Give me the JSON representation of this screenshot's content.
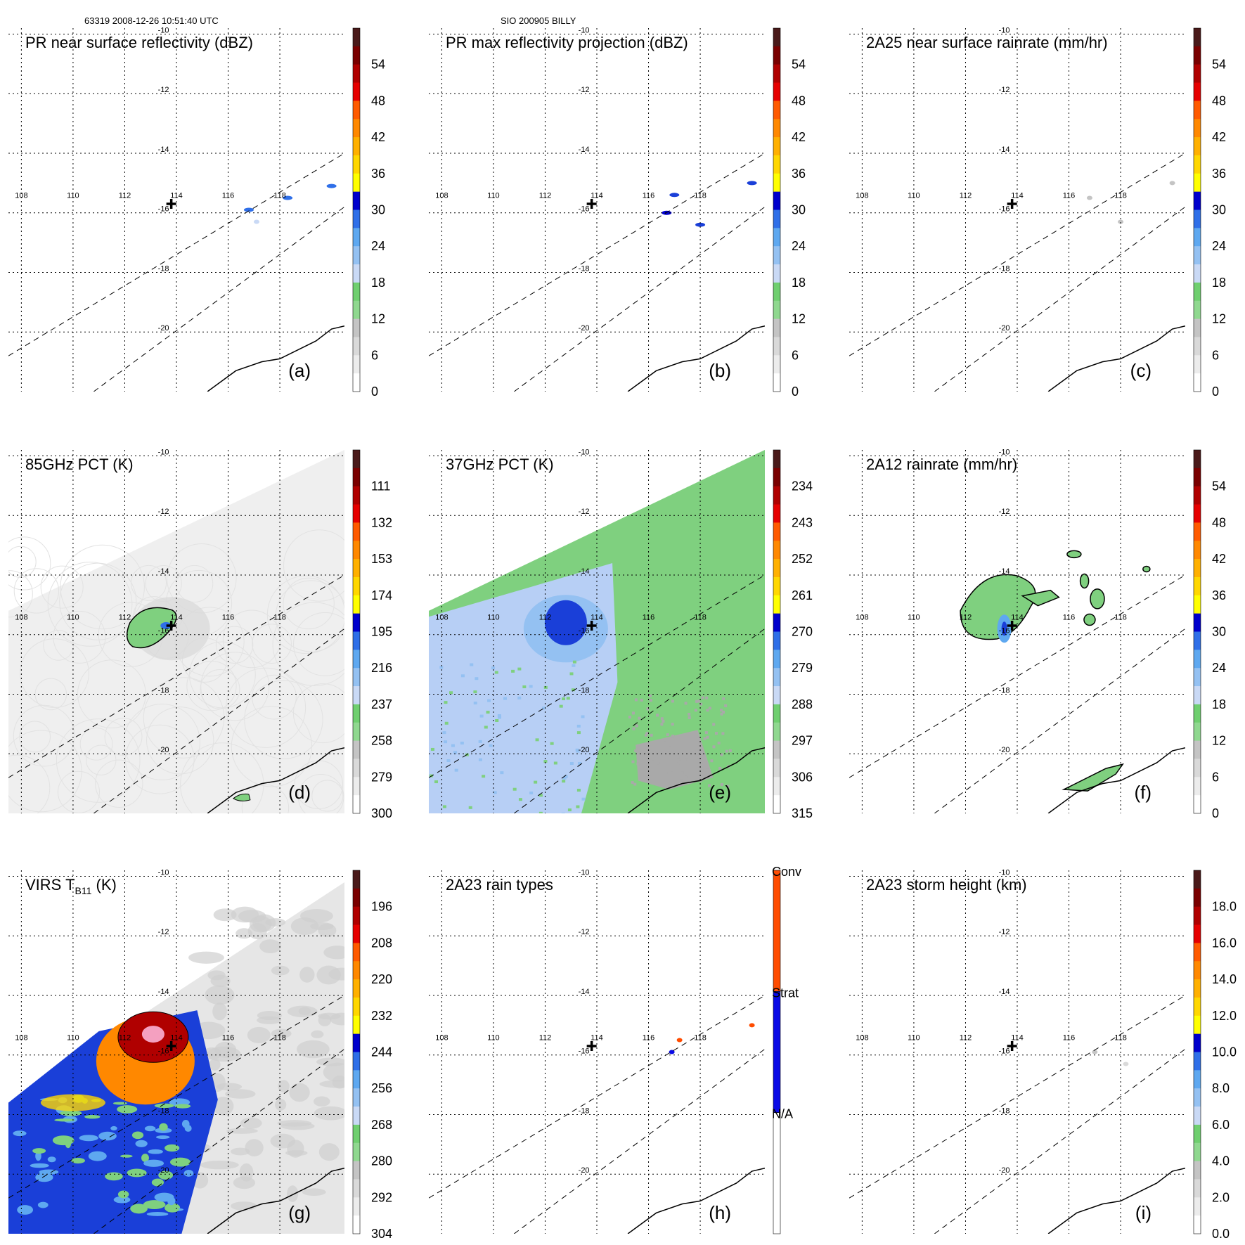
{
  "header": {
    "orbit_time": "63319 2008-12-26 10:51:40 UTC",
    "storm": "SIO 200905 BILLY"
  },
  "colors": {
    "scale": [
      "#ffffff",
      "#ececec",
      "#d9d9d9",
      "#c4c4c4",
      "#a9a9a9",
      "#8fd88f",
      "#6fcf6f",
      "#c9d9f5",
      "#94c1f2",
      "#5ea8f0",
      "#2f6fe8",
      "#1a3fd8",
      "#0000cc",
      "#ffff00",
      "#ffd700",
      "#ffb000",
      "#ff8800",
      "#ff5a00",
      "#ff2a00",
      "#e60000",
      "#b00000",
      "#7a0000",
      "#4a1a1a"
    ],
    "rain_types": {
      "Conv": "#ff4c00",
      "Strat": "#0a0ae6",
      "N/A": "#ffffff"
    },
    "coast": "#000000",
    "track": "#000000"
  },
  "chart_data": [
    {
      "id": "a",
      "type": "heatmap",
      "title": "PR near surface reflectivity (dBZ)",
      "label": "(a)",
      "xlim": [
        107.5,
        120.5
      ],
      "ylim": [
        -22,
        -9.8
      ],
      "xticks": [
        108,
        110,
        112,
        114,
        116,
        118
      ],
      "yticks": [
        -10,
        -12,
        -14,
        -16,
        -18,
        -20
      ],
      "colorbar": {
        "ticks": [
          "54",
          "48",
          "42",
          "36",
          "30",
          "24",
          "18",
          "12",
          "6",
          "0"
        ],
        "range": [
          0,
          60
        ]
      },
      "storm_center": [
        113.8,
        -15.7
      ],
      "field": "sparse",
      "features": [
        {
          "lon": 116.8,
          "lat": -15.9,
          "value": 28
        },
        {
          "lon": 118.3,
          "lat": -15.5,
          "value": 26
        },
        {
          "lon": 120.0,
          "lat": -15.1,
          "value": 27
        },
        {
          "lon": 117.1,
          "lat": -16.3,
          "value": 20
        }
      ]
    },
    {
      "id": "b",
      "type": "heatmap",
      "title": "PR max reflectivity projection (dBZ)",
      "label": "(b)",
      "xlim": [
        107.5,
        120.5
      ],
      "ylim": [
        -22,
        -9.8
      ],
      "xticks": [
        108,
        110,
        112,
        114,
        116,
        118
      ],
      "yticks": [
        -10,
        -12,
        -14,
        -16,
        -18,
        -20
      ],
      "colorbar": {
        "ticks": [
          "54",
          "48",
          "42",
          "36",
          "30",
          "24",
          "18",
          "12",
          "6",
          "0"
        ],
        "range": [
          0,
          60
        ]
      },
      "storm_center": [
        113.8,
        -15.7
      ],
      "field": "sparse",
      "features": [
        {
          "lon": 116.7,
          "lat": -16.0,
          "value": 32
        },
        {
          "lon": 117.0,
          "lat": -15.4,
          "value": 31
        },
        {
          "lon": 118.0,
          "lat": -16.4,
          "value": 30
        },
        {
          "lon": 120.0,
          "lat": -15.0,
          "value": 31
        }
      ]
    },
    {
      "id": "c",
      "type": "heatmap",
      "title": "2A25 near surface rainrate (mm/hr)",
      "label": "(c)",
      "xlim": [
        107.5,
        120.5
      ],
      "ylim": [
        -22,
        -9.8
      ],
      "xticks": [
        108,
        110,
        112,
        114,
        116,
        118
      ],
      "yticks": [
        -10,
        -12,
        -14,
        -16,
        -18,
        -20
      ],
      "colorbar": {
        "ticks": [
          "54",
          "48",
          "42",
          "36",
          "30",
          "24",
          "18",
          "12",
          "6",
          "0"
        ],
        "range": [
          0,
          60
        ]
      },
      "storm_center": [
        113.8,
        -15.7
      ],
      "field": "sparse",
      "features": [
        {
          "lon": 116.8,
          "lat": -15.5,
          "value": 8
        },
        {
          "lon": 118.0,
          "lat": -16.3,
          "value": 7
        },
        {
          "lon": 120.0,
          "lat": -15.0,
          "value": 8
        }
      ]
    },
    {
      "id": "d",
      "type": "heatmap",
      "title": "85GHz PCT (K)",
      "label": "(d)",
      "xlim": [
        107.5,
        120.5
      ],
      "ylim": [
        -22,
        -9.8
      ],
      "xticks": [
        108,
        110,
        112,
        114,
        116,
        118
      ],
      "yticks": [
        -10,
        -12,
        -14,
        -16,
        -18,
        -20
      ],
      "colorbar": {
        "ticks": [
          "111",
          "132",
          "153",
          "174",
          "195",
          "216",
          "237",
          "258",
          "279",
          "300"
        ],
        "range": [
          90,
          300
        ]
      },
      "storm_center": [
        113.8,
        -15.7
      ],
      "field": "swath-grey",
      "features": [
        {
          "lon": 113.0,
          "lat": -15.7,
          "value": 230
        }
      ]
    },
    {
      "id": "e",
      "type": "heatmap",
      "title": "37GHz PCT (K)",
      "label": "(e)",
      "xlim": [
        107.5,
        120.5
      ],
      "ylim": [
        -22,
        -9.8
      ],
      "xticks": [
        108,
        110,
        112,
        114,
        116,
        118
      ],
      "yticks": [
        -10,
        -12,
        -14,
        -16,
        -18,
        -20
      ],
      "colorbar": {
        "ticks": [
          "234",
          "243",
          "252",
          "261",
          "270",
          "279",
          "288",
          "297",
          "306",
          "315"
        ],
        "range": [
          225,
          315
        ]
      },
      "storm_center": [
        113.8,
        -15.7
      ],
      "field": "swath-37",
      "features": [
        {
          "lon": 112.9,
          "lat": -15.5,
          "value": 265
        }
      ]
    },
    {
      "id": "f",
      "type": "heatmap",
      "title": "2A12 rainrate (mm/hr)",
      "label": "(f)",
      "xlim": [
        107.5,
        120.5
      ],
      "ylim": [
        -22,
        -9.8
      ],
      "xticks": [
        108,
        110,
        112,
        114,
        116,
        118
      ],
      "yticks": [
        -10,
        -12,
        -14,
        -16,
        -18,
        -20
      ],
      "colorbar": {
        "ticks": [
          "54",
          "48",
          "42",
          "36",
          "30",
          "24",
          "18",
          "12",
          "6",
          "0"
        ],
        "range": [
          0,
          60
        ]
      },
      "storm_center": [
        113.8,
        -15.7
      ],
      "field": "rain-2a12",
      "features": [
        {
          "lon": 113.5,
          "lat": -15.8,
          "value": 14
        }
      ]
    },
    {
      "id": "g",
      "type": "heatmap",
      "title": "VIRS T_B11 (K)",
      "label": "(g)",
      "xlim": [
        107.5,
        120.5
      ],
      "ylim": [
        -22,
        -9.8
      ],
      "xticks": [
        108,
        110,
        112,
        114,
        116,
        118
      ],
      "yticks": [
        -10,
        -12,
        -14,
        -16,
        -18,
        -20
      ],
      "colorbar": {
        "ticks": [
          "196",
          "208",
          "220",
          "232",
          "244",
          "256",
          "268",
          "280",
          "292",
          "304"
        ],
        "range": [
          184,
          304
        ]
      },
      "storm_center": [
        113.8,
        -15.7
      ],
      "field": "virs",
      "features": [
        {
          "lon": 113.2,
          "lat": -15.4,
          "value": 190
        }
      ]
    },
    {
      "id": "h",
      "type": "heatmap",
      "title": "2A23 rain types",
      "label": "(h)",
      "xlim": [
        107.5,
        120.5
      ],
      "ylim": [
        -22,
        -9.8
      ],
      "xticks": [
        108,
        110,
        112,
        114,
        116,
        118
      ],
      "yticks": [
        -10,
        -12,
        -14,
        -16,
        -18,
        -20
      ],
      "colorbar": {
        "categories": [
          "Conv",
          "Strat",
          "N/A"
        ]
      },
      "storm_center": [
        113.8,
        -15.7
      ],
      "field": "sparse-types",
      "features": [
        {
          "lon": 116.9,
          "lat": -15.9,
          "value": "Strat"
        },
        {
          "lon": 117.2,
          "lat": -15.5,
          "value": "Conv"
        },
        {
          "lon": 120.0,
          "lat": -15.0,
          "value": "Conv"
        }
      ]
    },
    {
      "id": "i",
      "type": "heatmap",
      "title": "2A23 storm height (km)",
      "label": "(i)",
      "xlim": [
        107.5,
        120.5
      ],
      "ylim": [
        -22,
        -9.8
      ],
      "xticks": [
        108,
        110,
        112,
        114,
        116,
        118
      ],
      "yticks": [
        -10,
        -12,
        -14,
        -16,
        -18,
        -20
      ],
      "colorbar": {
        "ticks": [
          "18.0",
          "16.0",
          "14.0",
          "12.0",
          "10.0",
          "8.0",
          "6.0",
          "4.0",
          "2.0",
          "0.0"
        ],
        "range": [
          0,
          20
        ]
      },
      "storm_center": [
        113.8,
        -15.7
      ],
      "field": "sparse",
      "features": [
        {
          "lon": 117.0,
          "lat": -15.9,
          "value": 3
        },
        {
          "lon": 118.2,
          "lat": -16.3,
          "value": 2
        }
      ]
    }
  ]
}
